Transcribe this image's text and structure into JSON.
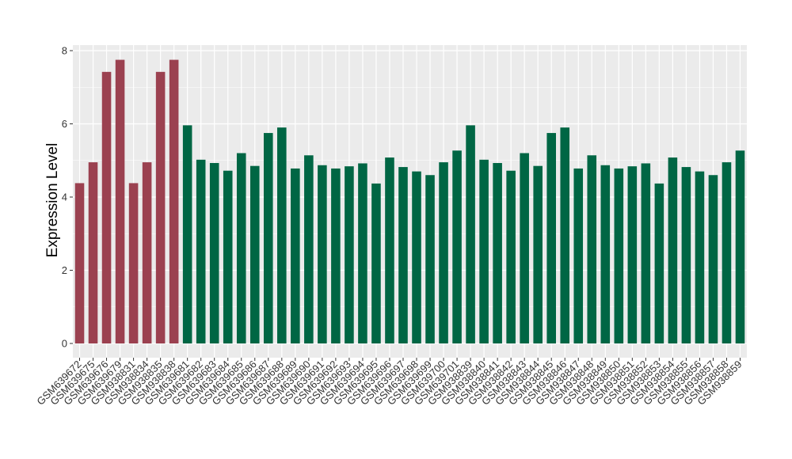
{
  "chart_data": {
    "type": "bar",
    "title": "",
    "xlabel": "",
    "ylabel": "Expression Level",
    "ylim": [
      0,
      8.3
    ],
    "yticks": [
      0,
      2,
      4,
      6,
      8
    ],
    "grid": true,
    "legend": "none",
    "colors": {
      "group_a": "#9b4150",
      "group_b": "#006644",
      "panel_bg": "#ebebeb",
      "grid": "#ffffff"
    },
    "categories": [
      "GSM639672",
      "GSM639675",
      "GSM639676",
      "GSM639679",
      "GSM938831",
      "GSM938834",
      "GSM938835",
      "GSM938838",
      "GSM639681",
      "GSM639682",
      "GSM639683",
      "GSM639684",
      "GSM639685",
      "GSM639686",
      "GSM639687",
      "GSM639688",
      "GSM639689",
      "GSM639690",
      "GSM639691",
      "GSM639692",
      "GSM639693",
      "GSM639694",
      "GSM639695",
      "GSM639696",
      "GSM639697",
      "GSM639698",
      "GSM639699",
      "GSM639700",
      "GSM639701",
      "GSM938839",
      "GSM938840",
      "GSM938841",
      "GSM938842",
      "GSM938843",
      "GSM938844",
      "GSM938845",
      "GSM938846",
      "GSM938847",
      "GSM938848",
      "GSM938849",
      "GSM938850",
      "GSM938851",
      "GSM938852",
      "GSM938853",
      "GSM938854",
      "GSM938855",
      "GSM938856",
      "GSM938857",
      "GSM938858",
      "GSM938859"
    ],
    "values": [
      4.38,
      4.95,
      7.42,
      7.75,
      4.38,
      4.95,
      7.42,
      7.75,
      5.96,
      5.02,
      4.93,
      4.72,
      5.2,
      4.85,
      5.75,
      5.9,
      4.78,
      5.14,
      4.87,
      4.78,
      4.84,
      4.92,
      4.37,
      5.08,
      4.82,
      4.7,
      4.6,
      4.95,
      5.27,
      5.96,
      5.02,
      4.93,
      4.72,
      5.2,
      4.85,
      5.75,
      5.9,
      4.78,
      5.14,
      4.87,
      4.78,
      4.84,
      4.92,
      4.37,
      5.08,
      4.82,
      4.7,
      4.6,
      4.95,
      5.27
    ],
    "groups": [
      "a",
      "a",
      "a",
      "a",
      "a",
      "a",
      "a",
      "a",
      "b",
      "b",
      "b",
      "b",
      "b",
      "b",
      "b",
      "b",
      "b",
      "b",
      "b",
      "b",
      "b",
      "b",
      "b",
      "b",
      "b",
      "b",
      "b",
      "b",
      "b",
      "b",
      "b",
      "b",
      "b",
      "b",
      "b",
      "b",
      "b",
      "b",
      "b",
      "b",
      "b",
      "b",
      "b",
      "b",
      "b",
      "b",
      "b",
      "b",
      "b",
      "b"
    ]
  }
}
